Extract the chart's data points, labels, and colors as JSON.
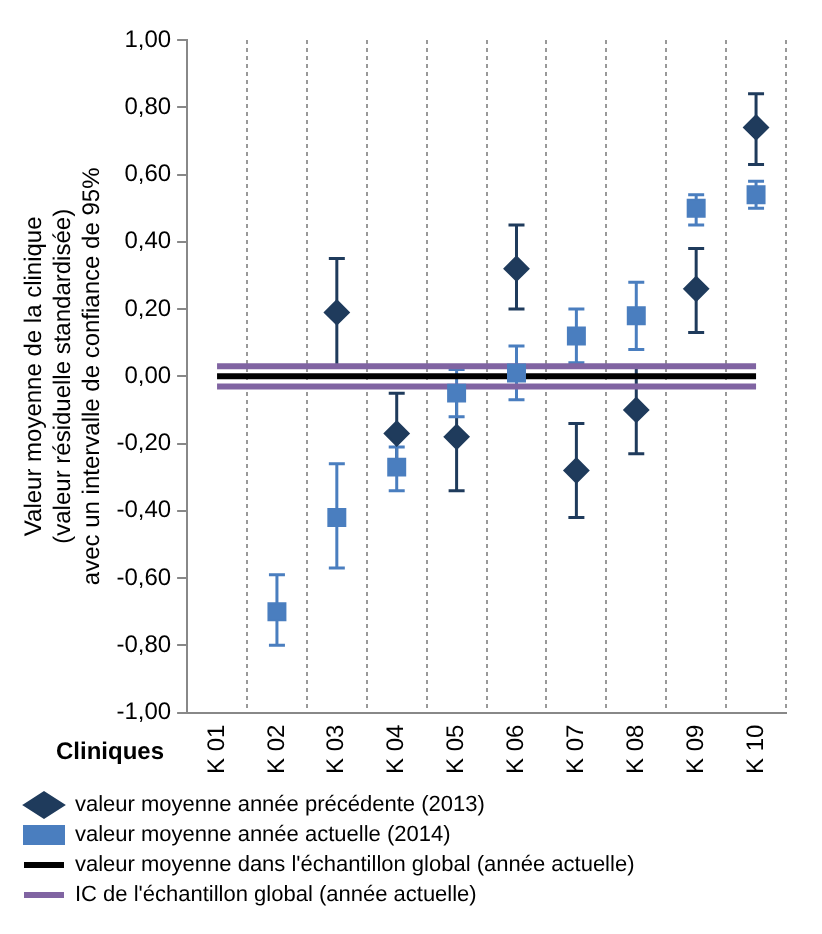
{
  "chart_data": {
    "type": "scatter",
    "xlabel": "Cliniques",
    "ylabel": "Valeur moyenne de la clinique\n(valeur résiduelle standardisée)\navec un intervalle de confiance de 95%",
    "categories": [
      "K 01",
      "K 02",
      "K 03",
      "K 04",
      "K 05",
      "K 06",
      "K 07",
      "K 08",
      "K 09",
      "K 10"
    ],
    "ylim": [
      -1,
      1
    ],
    "yticks": [
      {
        "value": -1,
        "label": "-1,00"
      },
      {
        "value": -0.8,
        "label": "-0,80"
      },
      {
        "value": -0.6,
        "label": "-0,60"
      },
      {
        "value": -0.4,
        "label": "-0,40"
      },
      {
        "value": -0.2,
        "label": "-0,20"
      },
      {
        "value": 0,
        "label": "0,00"
      },
      {
        "value": 0.2,
        "label": "0,20"
      },
      {
        "value": 0.4,
        "label": "0,40"
      },
      {
        "value": 0.6,
        "label": "0,60"
      },
      {
        "value": 0.8,
        "label": "0,80"
      },
      {
        "value": 1,
        "label": "1,00"
      }
    ],
    "grid": "x",
    "legend": "bottom",
    "series": [
      {
        "name": "valeur moyenne année précédente (2013)",
        "marker": "diamond",
        "color": "#1f3b5c",
        "values": [
          null,
          null,
          0.19,
          -0.17,
          -0.18,
          0.32,
          -0.28,
          -0.1,
          0.26,
          0.74
        ],
        "errors": [
          null,
          null,
          [
            0.03,
            0.35
          ],
          [
            -0.28,
            -0.05
          ],
          [
            -0.34,
            -0.03
          ],
          [
            0.2,
            0.45
          ],
          [
            -0.42,
            -0.14
          ],
          [
            -0.23,
            0.03
          ],
          [
            0.13,
            0.38
          ],
          [
            0.63,
            0.84
          ]
        ]
      },
      {
        "name": "valeur moyenne année actuelle (2014)",
        "marker": "square",
        "color": "#4a7ebf",
        "values": [
          null,
          -0.7,
          -0.42,
          -0.27,
          -0.05,
          0.01,
          0.12,
          0.18,
          0.5,
          0.54
        ],
        "errors": [
          null,
          [
            -0.8,
            -0.59
          ],
          [
            -0.57,
            -0.26
          ],
          [
            -0.34,
            -0.21
          ],
          [
            -0.12,
            0.02
          ],
          [
            -0.07,
            0.09
          ],
          [
            0.04,
            0.2
          ],
          [
            0.08,
            0.28
          ],
          [
            0.45,
            0.54
          ],
          [
            0.5,
            0.58
          ]
        ]
      },
      {
        "name": "valeur moyenne dans l'échantillon global (année actuelle)",
        "type": "line",
        "marker": "none",
        "color": "#000000",
        "values": [
          0,
          0,
          0,
          0,
          0,
          0,
          0,
          0,
          0,
          0
        ]
      },
      {
        "name": "IC de l'échantillon global (année actuelle)",
        "type": "line",
        "marker": "none",
        "color": "#8064a2",
        "values": [
          0.03,
          0.03,
          0.03,
          0.03,
          0.03,
          0.03,
          0.03,
          0.03,
          0.03,
          0.03
        ]
      },
      {
        "type": "line",
        "marker": "none",
        "color": "#8064a2",
        "values": [
          -0.03,
          -0.03,
          -0.03,
          -0.03,
          -0.03,
          -0.03,
          -0.03,
          -0.03,
          -0.03,
          -0.03
        ]
      }
    ]
  }
}
